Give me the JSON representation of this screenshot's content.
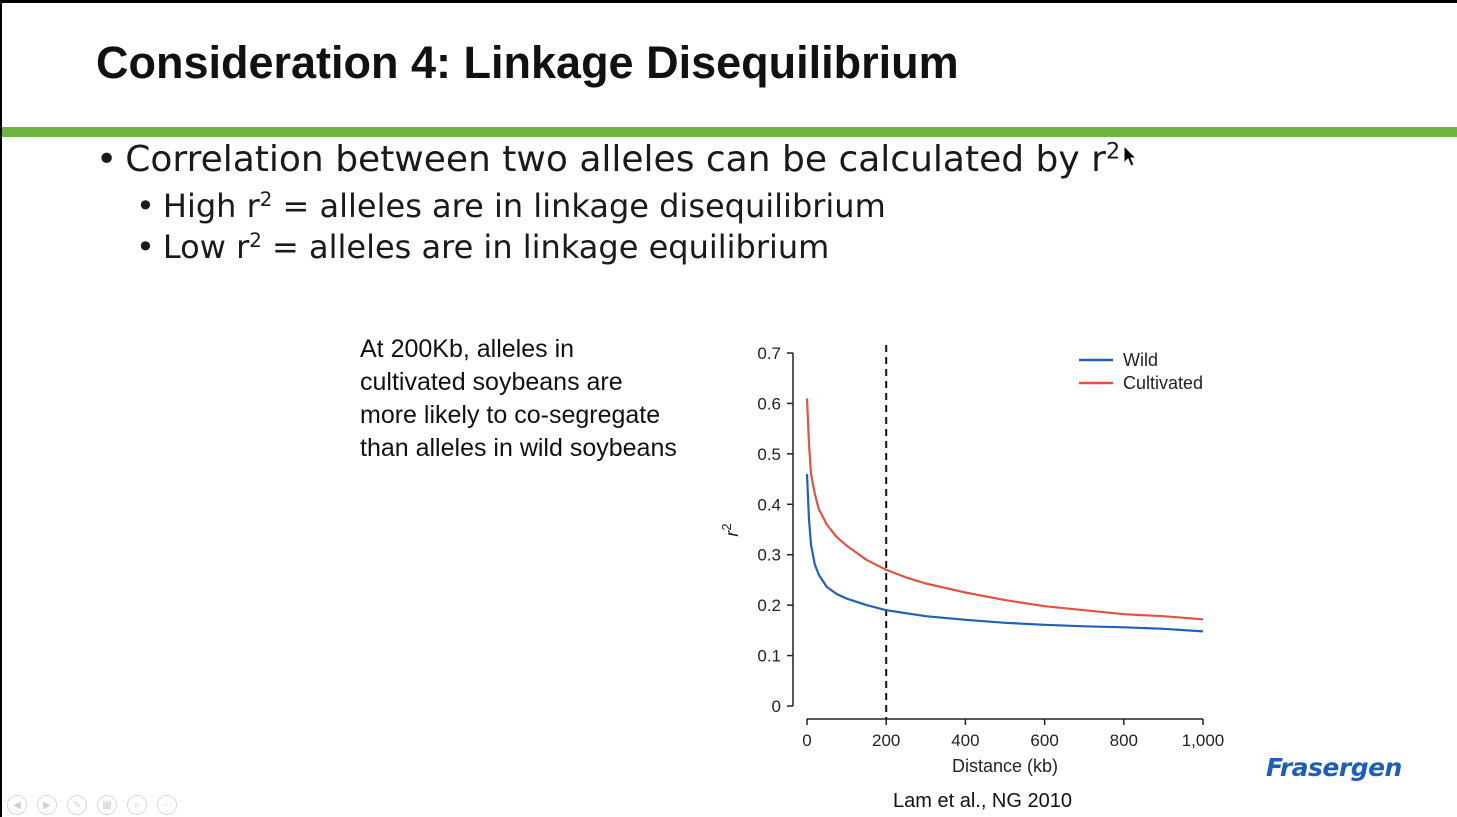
{
  "slide": {
    "title": "Consideration 4: Linkage Disequilibrium",
    "accent_color": "#6db33f",
    "bullets": [
      {
        "text": "Correlation between two alleles can be calculated by r",
        "sup": "2"
      },
      {
        "text_a": "High r",
        "sup": "2",
        "text_b": " = alleles are in linkage disequilibrium"
      },
      {
        "text_a": "Low r",
        "sup": "2",
        "text_b": " = alleles are in linkage equilibrium"
      }
    ],
    "annotation_lines": [
      "At 200Kb, alleles in",
      "cultivated soybeans are",
      "more likely to co-segregate",
      "than alleles in wild soybeans"
    ],
    "citation": "Lam et al., NG 2010",
    "logo": "Frasergen",
    "toolbar_icons": [
      "previous-icon",
      "next-icon",
      "pen-icon",
      "slides-icon",
      "zoom-icon",
      "more-icon"
    ]
  },
  "chart_data": {
    "type": "line",
    "xlabel": "Distance (kb)",
    "ylabel": "r2",
    "xlim": [
      0,
      1000
    ],
    "ylim": [
      0,
      0.7
    ],
    "xticks": [
      0,
      200,
      400,
      600,
      800,
      1000
    ],
    "xtick_labels": [
      "0",
      "200",
      "400",
      "600",
      "800",
      "1,000"
    ],
    "yticks": [
      0,
      0.1,
      0.2,
      0.3,
      0.4,
      0.5,
      0.6,
      0.7
    ],
    "ytick_labels": [
      "0",
      "0.1",
      "0.2",
      "0.3",
      "0.4",
      "0.5",
      "0.6",
      "0.7"
    ],
    "reference_line": {
      "x": 200,
      "style": "dashed"
    },
    "legend_position": "top-right",
    "series": [
      {
        "name": "Wild",
        "color": "#1f62b4",
        "x": [
          0,
          5,
          10,
          20,
          30,
          50,
          75,
          100,
          150,
          200,
          300,
          400,
          500,
          600,
          700,
          800,
          900,
          1000
        ],
        "values": [
          0.46,
          0.37,
          0.32,
          0.28,
          0.26,
          0.236,
          0.222,
          0.213,
          0.2,
          0.19,
          0.178,
          0.171,
          0.165,
          0.161,
          0.158,
          0.156,
          0.153,
          0.148
        ]
      },
      {
        "name": "Cultivated",
        "color": "#e05243",
        "x": [
          0,
          5,
          10,
          20,
          30,
          50,
          75,
          100,
          150,
          200,
          250,
          300,
          400,
          500,
          600,
          700,
          800,
          900,
          1000
        ],
        "values": [
          0.61,
          0.52,
          0.46,
          0.42,
          0.39,
          0.36,
          0.335,
          0.318,
          0.29,
          0.27,
          0.255,
          0.243,
          0.225,
          0.21,
          0.198,
          0.19,
          0.182,
          0.178,
          0.172
        ]
      }
    ]
  }
}
